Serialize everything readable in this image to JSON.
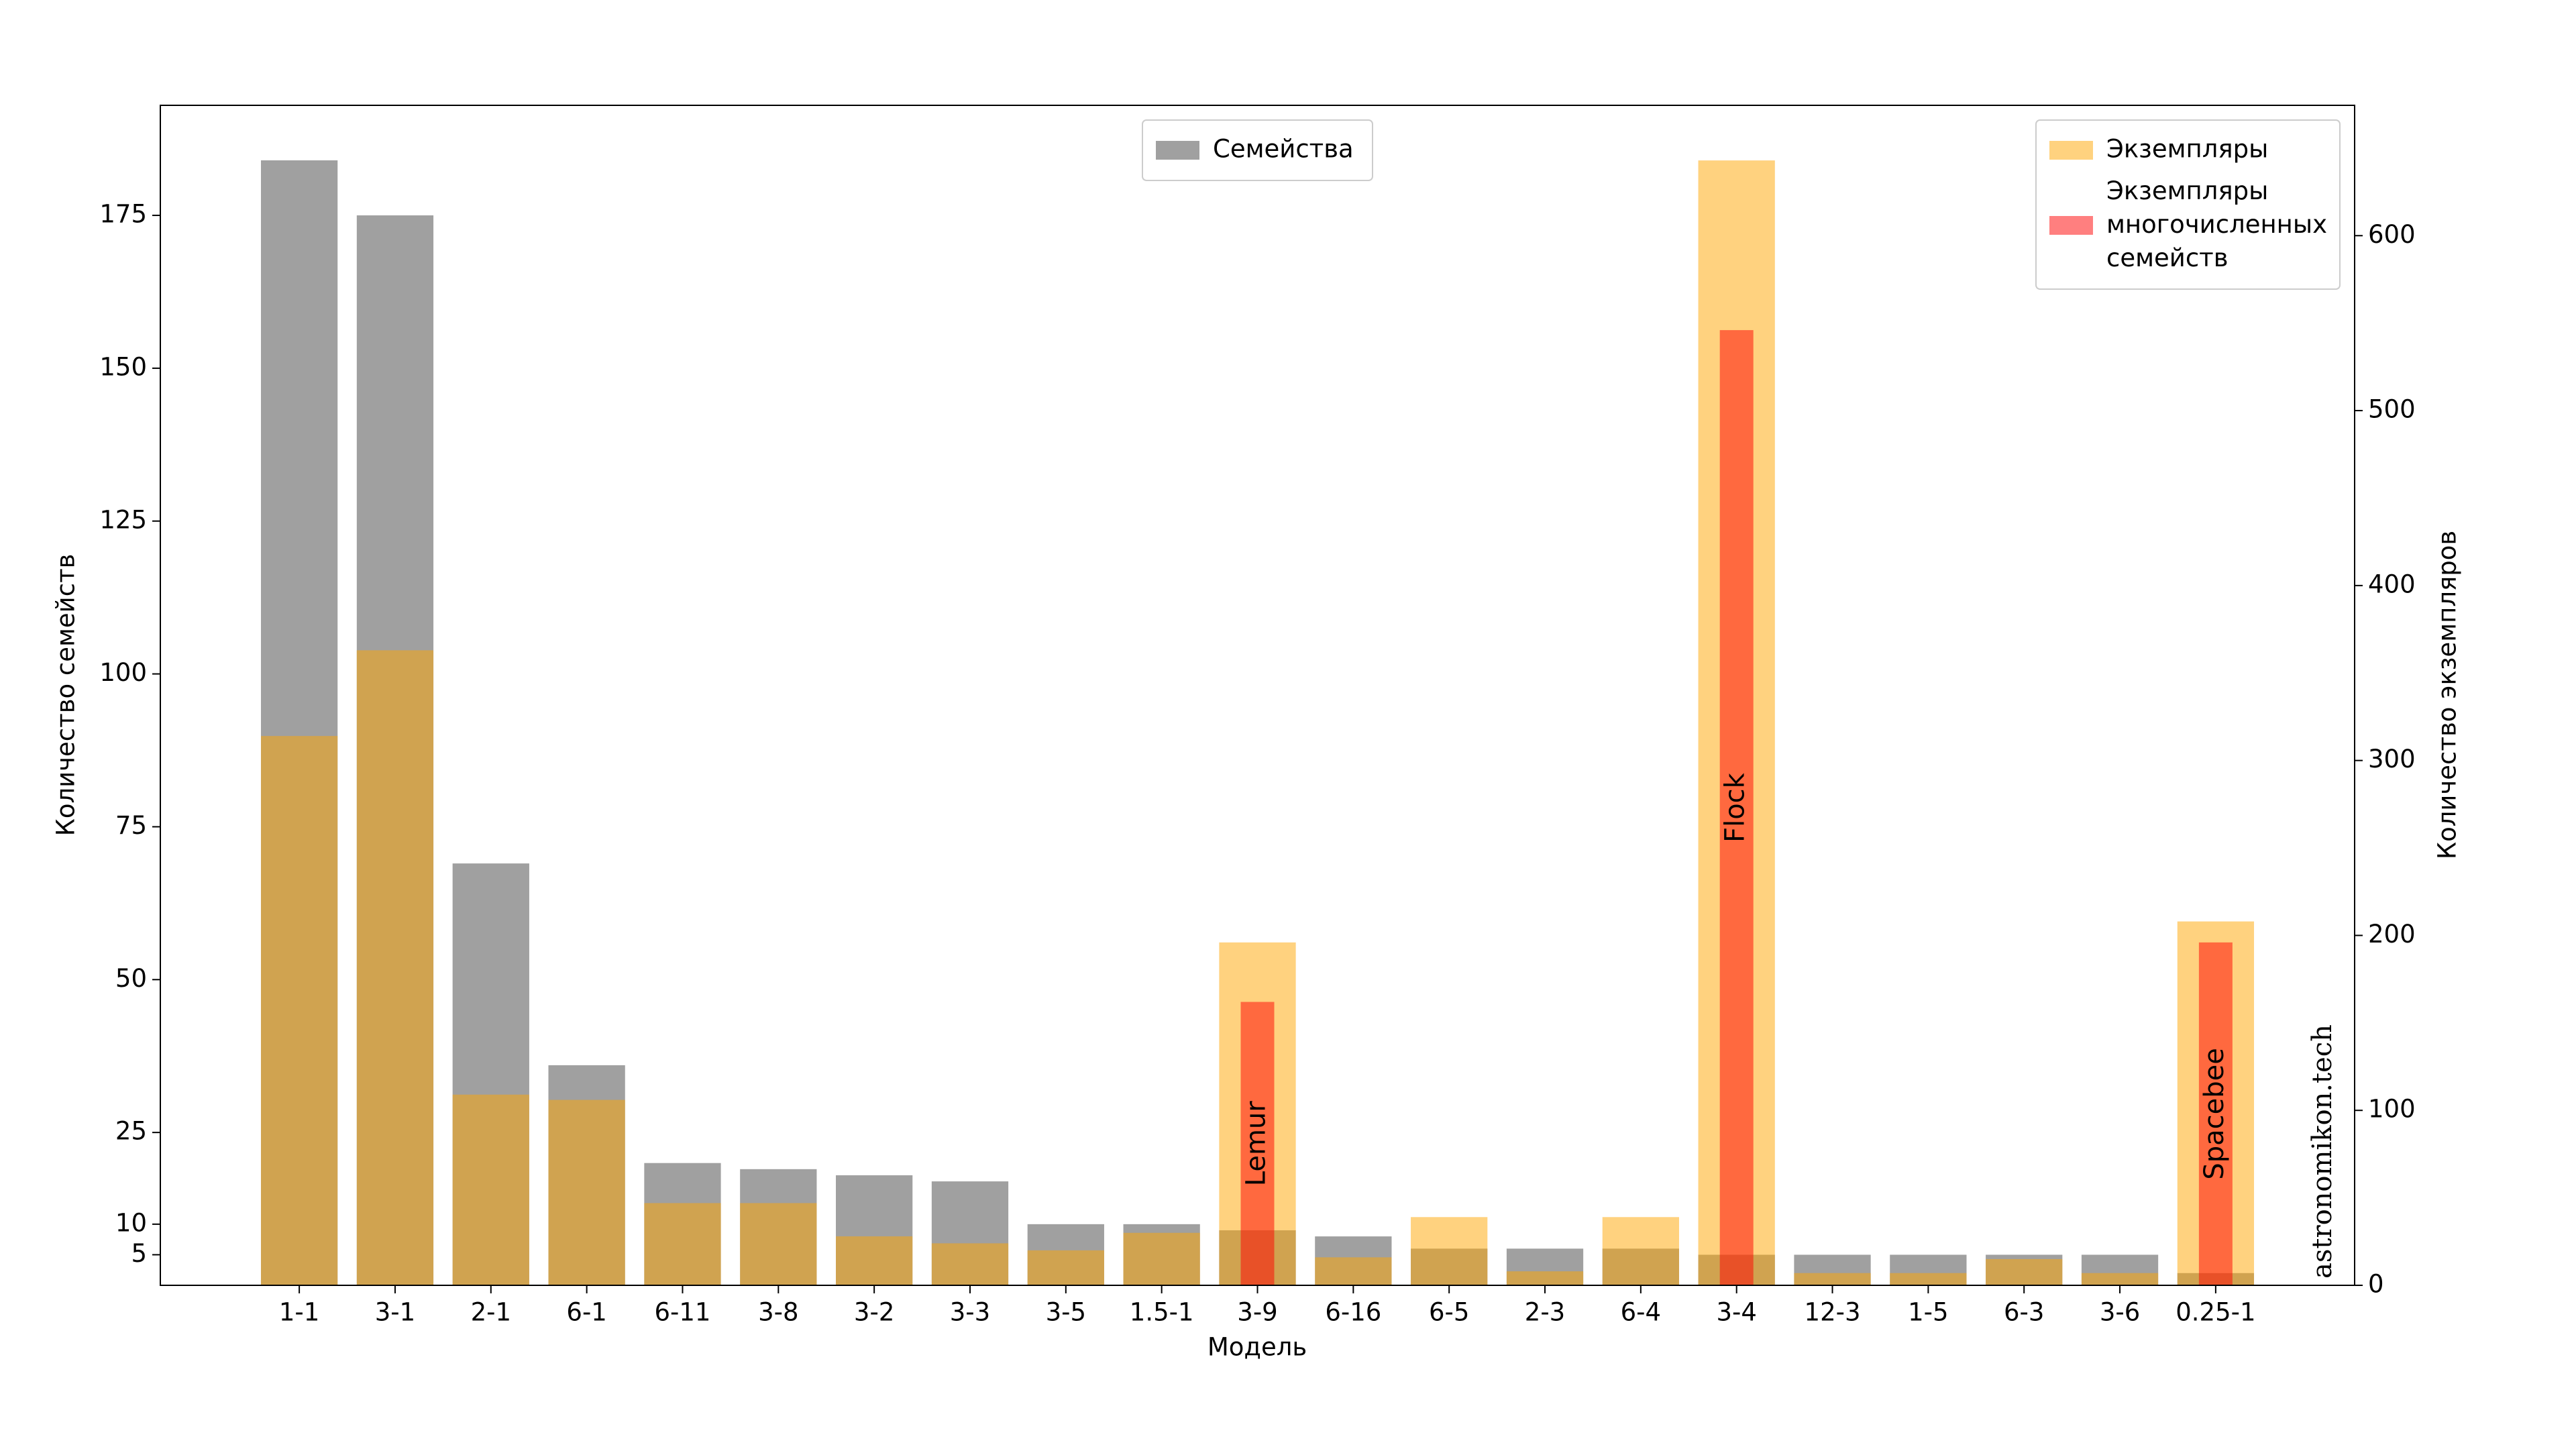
{
  "chart_data": {
    "type": "bar",
    "xlabel": "Модель",
    "ylabel": "Количество семейств",
    "y2label": "Количество экземпляров",
    "categories": [
      "1-1",
      "3-1",
      "2-1",
      "6-1",
      "6-11",
      "3-8",
      "3-2",
      "3-3",
      "3-5",
      "1.5-1",
      "3-9",
      "6-16",
      "6-5",
      "2-3",
      "6-4",
      "3-4",
      "12-3",
      "1-5",
      "6-3",
      "3-6",
      "0.25-1"
    ],
    "series": [
      {
        "name": "Семейства",
        "color": "#a0a0a0",
        "opacity": 1,
        "axis": "y",
        "values": [
          184,
          175,
          69,
          36,
          20,
          19,
          18,
          17,
          10,
          10,
          9,
          8,
          6,
          6,
          6,
          5,
          5,
          5,
          5,
          5,
          2
        ]
      },
      {
        "name": "Экземпляры",
        "color": "#ffa500",
        "opacity": 0.5,
        "axis": "y2",
        "values": [
          314,
          363,
          109,
          106,
          47,
          47,
          28,
          24,
          20,
          30,
          196,
          16,
          39,
          8,
          39,
          643,
          7,
          7,
          15,
          7,
          208
        ]
      },
      {
        "name": "Экземпляры многочисленных семейств",
        "color": "#ff0000",
        "opacity": 0.5,
        "axis": "y2",
        "values": [
          null,
          null,
          null,
          null,
          null,
          null,
          null,
          null,
          null,
          null,
          162,
          null,
          null,
          null,
          null,
          546,
          null,
          null,
          null,
          null,
          196
        ]
      }
    ],
    "bar_annotations": [
      null,
      null,
      null,
      null,
      null,
      null,
      null,
      null,
      null,
      null,
      "Lemur",
      null,
      null,
      null,
      null,
      "Flock",
      null,
      null,
      null,
      null,
      "Spacebee"
    ],
    "ylim": [
      0,
      193
    ],
    "yticks": [
      5,
      10,
      25,
      50,
      75,
      100,
      125,
      150,
      175
    ],
    "y2lim": [
      0,
      674.5
    ],
    "y2ticks": [
      0,
      100,
      200,
      300,
      400,
      500,
      600
    ],
    "legend_loc": "upper center",
    "legend2_loc": "upper right",
    "watermark": "astronomikon.tech"
  }
}
